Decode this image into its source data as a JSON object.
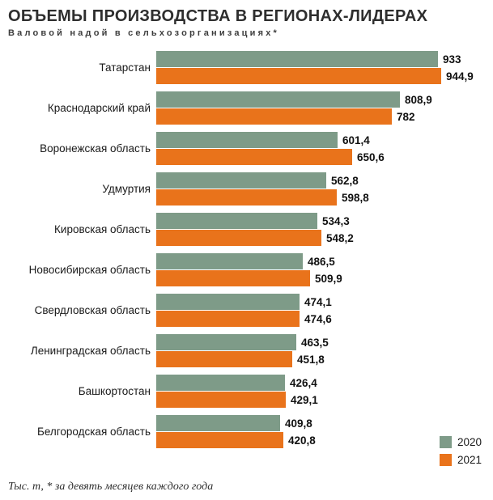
{
  "header": {
    "title": "ОБЪЕМЫ ПРОИЗВОДСТВА В РЕГИОНАХ-ЛИДЕРАХ",
    "subtitle": "Валовой надой в сельхозорганизациях*"
  },
  "footer": {
    "note": "Тыс. т, * за девять месяцев каждого года"
  },
  "colors": {
    "series_2020": "#7e9b88",
    "series_2021": "#e9731b",
    "text": "#1a1a1a",
    "background": "#ffffff"
  },
  "chart_data": {
    "type": "bar",
    "orientation": "horizontal",
    "title": "ОБЪЕМЫ ПРОИЗВОДСТВА В РЕГИОНАХ-ЛИДЕРАХ",
    "subtitle": "Валовой надой в сельхозорганизациях*",
    "unit": "Тыс. т",
    "footnote": "* за девять месяцев каждого года",
    "xlim": [
      0,
      1000
    ],
    "grid": false,
    "legend_position": "bottom-right",
    "categories": [
      "Татарстан",
      "Краснодарский край",
      "Воронежская область",
      "Удмуртия",
      "Кировская область",
      "Новосибирская область",
      "Свердловская область",
      "Ленинградская область",
      "Башкортостан",
      "Белгородская область"
    ],
    "series": [
      {
        "name": "2020",
        "color": "#7e9b88",
        "values": [
          933,
          808.9,
          601.4,
          562.8,
          534.3,
          486.5,
          474.1,
          463.5,
          426.4,
          409.8
        ],
        "labels": [
          "933",
          "808,9",
          "601,4",
          "562,8",
          "534,3",
          "486,5",
          "474,1",
          "463,5",
          "426,4",
          "409,8"
        ]
      },
      {
        "name": "2021",
        "color": "#e9731b",
        "values": [
          944.9,
          782,
          650.6,
          598.8,
          548.2,
          509.9,
          474.6,
          451.8,
          429.1,
          420.8
        ],
        "labels": [
          "944,9",
          "782",
          "650,6",
          "598,8",
          "548,2",
          "509,9",
          "474,6",
          "451,8",
          "429,1",
          "420,8"
        ]
      }
    ]
  }
}
